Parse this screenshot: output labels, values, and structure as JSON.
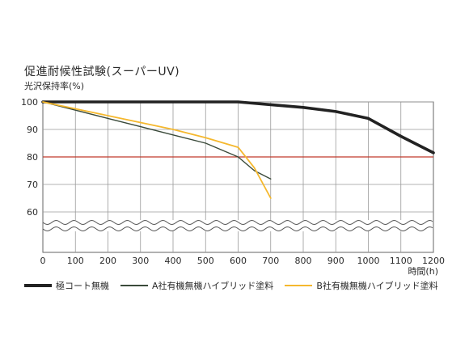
{
  "chart_data": {
    "type": "line",
    "title": "促進耐候性試験(スーパーUV)",
    "ylabel": "光沢保持率(%)",
    "xlabel": "時間(h)",
    "xlim": [
      0,
      1200
    ],
    "ylim": [
      50,
      100
    ],
    "x_ticks": [
      "0",
      "100",
      "200",
      "300",
      "400",
      "500",
      "600",
      "700",
      "800",
      "900",
      "1000",
      "1100",
      "1200"
    ],
    "y_ticks": [
      "100",
      "90",
      "80",
      "70",
      "60"
    ],
    "reference_line": {
      "value": 80,
      "color": "#c0392b"
    },
    "axis_break": true,
    "grid": true,
    "legend_position": "bottom",
    "series": [
      {
        "name": "極コート無機",
        "color": "#222222",
        "stroke": "thick",
        "x": [
          0,
          100,
          200,
          300,
          400,
          500,
          600,
          700,
          800,
          900,
          1000,
          1100,
          1200
        ],
        "y": [
          100,
          100,
          100,
          100,
          100,
          100,
          100,
          99,
          98,
          96.5,
          94,
          87.5,
          81.5
        ]
      },
      {
        "name": "A社有機無機ハイブリッド塗料",
        "color": "#3a4a3a",
        "stroke": "thin",
        "x": [
          0,
          100,
          200,
          300,
          400,
          500,
          600,
          650,
          700
        ],
        "y": [
          100,
          97,
          94,
          91,
          88,
          85,
          80,
          75,
          72
        ]
      },
      {
        "name": "B社有機無機ハイブリッド塗料",
        "color": "#f5b82e",
        "stroke": "thin",
        "x": [
          0,
          100,
          200,
          300,
          400,
          500,
          600,
          650,
          700
        ],
        "y": [
          100,
          97.5,
          95,
          92.5,
          90,
          87,
          83.5,
          76,
          65
        ]
      }
    ]
  }
}
